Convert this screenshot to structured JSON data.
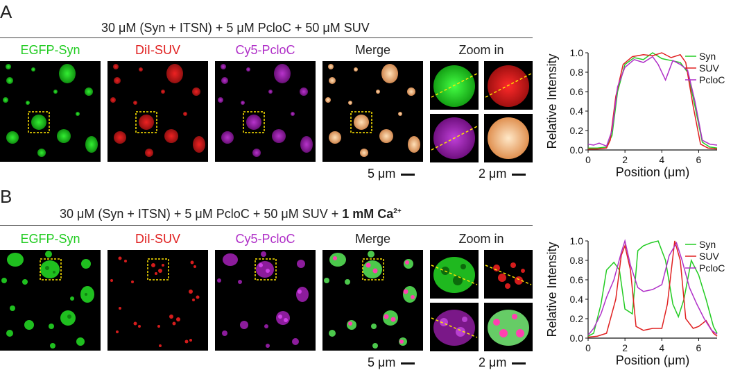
{
  "colors": {
    "syn": "#22cc22",
    "suv": "#e02020",
    "ploc": "#b030c8",
    "merge_A": "#ffc890",
    "roi": "#ffe600",
    "scalebar": "#111111"
  },
  "panels": [
    {
      "letter": "A",
      "condition_prefix": "30 μM (Syn + ITSN) + 5 μM PcloC + 50 μM SUV",
      "condition_bold": "",
      "condition_sup": "",
      "channels": [
        "EGFP-Syn",
        "DiI-SUV",
        "Cy5-PcloC",
        "Merge",
        "Zoom in"
      ],
      "scalebar_main": "5 μm",
      "scalebar_zoom": "2 μm"
    },
    {
      "letter": "B",
      "condition_prefix": "30 μM (Syn + ITSN) + 5 μM PcloC + 50 μM SUV + ",
      "condition_bold": "1 mM Ca",
      "condition_sup": "2+",
      "channels": [
        "EGFP-Syn",
        "DiI-SUV",
        "Cy5-PcloC",
        "Merge",
        "Zoom in"
      ],
      "scalebar_main": "5 μm",
      "scalebar_zoom": "2 μm"
    }
  ],
  "chart_data": [
    {
      "type": "line",
      "title": "",
      "xlabel": "Position (μm)",
      "ylabel": "Relative Intensity",
      "xlim": [
        0,
        7
      ],
      "ylim": [
        0,
        1.0
      ],
      "xticks": [
        0,
        2,
        4,
        6
      ],
      "yticks": [
        0.0,
        0.2,
        0.4,
        0.6,
        0.8,
        1.0
      ],
      "legend_position": "top-right",
      "series": [
        {
          "name": "Syn",
          "color": "#22cc22",
          "x": [
            0,
            0.5,
            1.0,
            1.3,
            1.6,
            2.0,
            2.5,
            3.0,
            3.5,
            4.0,
            4.5,
            5.0,
            5.4,
            5.8,
            6.2,
            6.6,
            7.0
          ],
          "y": [
            0.02,
            0.02,
            0.03,
            0.15,
            0.6,
            0.88,
            0.95,
            0.93,
            1.0,
            0.94,
            0.92,
            0.9,
            0.8,
            0.45,
            0.08,
            0.03,
            0.02
          ]
        },
        {
          "name": "SUV",
          "color": "#e02020",
          "x": [
            0,
            0.5,
            1.0,
            1.2,
            1.5,
            1.9,
            2.4,
            3.0,
            3.5,
            4.0,
            4.5,
            5.0,
            5.3,
            5.7,
            6.1,
            6.5,
            7.0
          ],
          "y": [
            0.01,
            0.01,
            0.02,
            0.1,
            0.55,
            0.88,
            0.96,
            0.98,
            0.97,
            1.0,
            0.95,
            0.98,
            0.9,
            0.45,
            0.06,
            0.02,
            0.01
          ]
        },
        {
          "name": "PcloC",
          "color": "#b030c8",
          "x": [
            0,
            0.3,
            0.6,
            1.0,
            1.3,
            1.6,
            2.0,
            2.5,
            3.0,
            3.5,
            3.8,
            4.2,
            4.6,
            5.0,
            5.4,
            5.8,
            6.2,
            6.6,
            7.0
          ],
          "y": [
            0.06,
            0.05,
            0.07,
            0.04,
            0.2,
            0.65,
            0.85,
            0.93,
            0.9,
            0.96,
            0.88,
            0.72,
            0.92,
            0.88,
            0.82,
            0.5,
            0.1,
            0.06,
            0.05
          ]
        }
      ]
    },
    {
      "type": "line",
      "title": "",
      "xlabel": "Position (μm)",
      "ylabel": "Relative Intensity",
      "xlim": [
        0,
        7
      ],
      "ylim": [
        0,
        1.0
      ],
      "xticks": [
        0,
        2,
        4,
        6
      ],
      "yticks": [
        0.0,
        0.2,
        0.4,
        0.6,
        0.8,
        1.0
      ],
      "legend_position": "top-right",
      "series": [
        {
          "name": "Syn",
          "color": "#22cc22",
          "x": [
            0,
            0.3,
            0.7,
            1.0,
            1.4,
            1.7,
            2.0,
            2.4,
            2.7,
            3.0,
            3.4,
            3.8,
            4.2,
            4.6,
            4.9,
            5.2,
            5.6,
            6.0,
            6.4,
            6.8,
            7.0
          ],
          "y": [
            0.02,
            0.05,
            0.35,
            0.7,
            0.78,
            0.7,
            0.3,
            0.25,
            0.9,
            0.95,
            0.98,
            1.0,
            0.8,
            0.35,
            0.22,
            0.4,
            0.8,
            0.65,
            0.4,
            0.12,
            0.05
          ]
        },
        {
          "name": "SUV",
          "color": "#e02020",
          "x": [
            0,
            0.5,
            1.0,
            1.5,
            1.8,
            2.0,
            2.3,
            2.6,
            3.0,
            3.5,
            4.0,
            4.3,
            4.7,
            5.0,
            5.3,
            5.7,
            6.0,
            6.4,
            6.8,
            7.0
          ],
          "y": [
            0.01,
            0.02,
            0.05,
            0.4,
            0.85,
            0.95,
            0.7,
            0.12,
            0.08,
            0.1,
            0.1,
            0.35,
            1.0,
            0.8,
            0.2,
            0.1,
            0.12,
            0.18,
            0.05,
            0.02
          ]
        },
        {
          "name": "PcloC",
          "color": "#b030c8",
          "x": [
            0,
            0.3,
            0.7,
            1.0,
            1.4,
            1.8,
            2.0,
            2.3,
            2.7,
            3.0,
            3.5,
            4.0,
            4.4,
            4.8,
            5.1,
            5.5,
            5.9,
            6.3,
            6.7,
            7.0
          ],
          "y": [
            0.03,
            0.1,
            0.25,
            0.42,
            0.6,
            0.88,
            1.0,
            0.75,
            0.52,
            0.48,
            0.5,
            0.55,
            0.85,
            0.98,
            0.8,
            0.52,
            0.35,
            0.2,
            0.08,
            0.04
          ]
        }
      ]
    }
  ]
}
